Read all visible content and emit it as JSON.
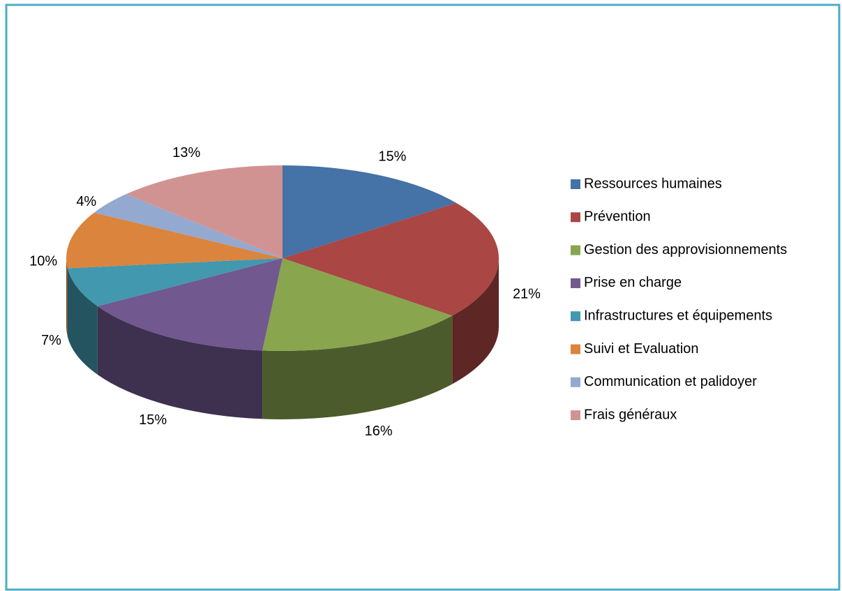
{
  "chart_data": {
    "type": "pie",
    "categories": [
      "Ressources humaines",
      "Prévention",
      "Gestion des approvisionnements",
      "Prise en charge",
      "Infrastructures et équipements",
      "Suivi et Evaluation",
      "Communication et palidoyer",
      "Frais généraux"
    ],
    "values": [
      15,
      21,
      16,
      15,
      7,
      10,
      4,
      13
    ],
    "value_labels": [
      "15%",
      "21%",
      "16%",
      "15%",
      "7%",
      "10%",
      "4%",
      "13%"
    ],
    "colors": [
      "#4572a7",
      "#aa4643",
      "#89a54e",
      "#71588f",
      "#4198af",
      "#db843d",
      "#93a9cf",
      "#d19392"
    ],
    "legend": "right"
  }
}
